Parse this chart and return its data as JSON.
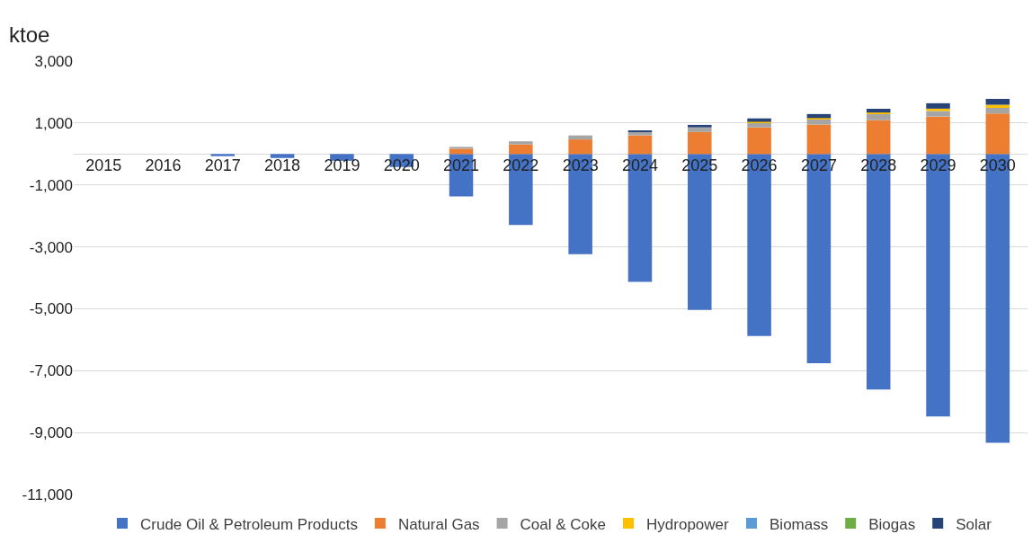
{
  "chart_data": {
    "type": "bar",
    "stacked": true,
    "ylabel": "ktoe",
    "categories": [
      "2015",
      "2016",
      "2017",
      "2018",
      "2019",
      "2020",
      "2021",
      "2022",
      "2023",
      "2024",
      "2025",
      "2026",
      "2027",
      "2028",
      "2029",
      "2030"
    ],
    "series": [
      {
        "name": "Crude Oil & Petroleum Products",
        "color": "#4472c4",
        "values": [
          0,
          0,
          -70,
          -130,
          -220,
          -420,
          -1370,
          -2290,
          -3240,
          -4130,
          -5040,
          -5880,
          -6760,
          -7610,
          -8480,
          -9330
        ]
      },
      {
        "name": "Natural Gas",
        "color": "#ed7d31",
        "values": [
          0,
          0,
          0,
          0,
          0,
          0,
          170,
          310,
          470,
          600,
          710,
          860,
          950,
          1090,
          1210,
          1310
        ]
      },
      {
        "name": "Coal & Coke",
        "color": "#a5a5a5",
        "values": [
          0,
          0,
          0,
          0,
          0,
          0,
          60,
          100,
          130,
          110,
          150,
          160,
          180,
          200,
          180,
          180
        ]
      },
      {
        "name": "Hydropower",
        "color": "#ffc000",
        "values": [
          0,
          0,
          0,
          0,
          0,
          0,
          0,
          0,
          0,
          0,
          0,
          20,
          30,
          50,
          75,
          100
        ]
      },
      {
        "name": "Biomass",
        "color": "#5b9bd5",
        "values": [
          0,
          0,
          0,
          0,
          0,
          0,
          0,
          0,
          0,
          0,
          0,
          0,
          0,
          0,
          0,
          0
        ]
      },
      {
        "name": "Biogas",
        "color": "#70ad47",
        "values": [
          0,
          0,
          0,
          0,
          0,
          0,
          0,
          0,
          0,
          0,
          0,
          0,
          0,
          0,
          0,
          0
        ]
      },
      {
        "name": "Solar",
        "color": "#264478",
        "values": [
          0,
          0,
          0,
          0,
          0,
          0,
          0,
          0,
          0,
          40,
          80,
          110,
          130,
          120,
          175,
          190
        ]
      }
    ],
    "ylim": [
      -11000,
      3000
    ],
    "yticks": [
      {
        "value": 3000,
        "label": "3,000"
      },
      {
        "value": 1000,
        "label": "1,000"
      },
      {
        "value": -1000,
        "label": "-1,000"
      },
      {
        "value": -3000,
        "label": "-3,000"
      },
      {
        "value": -5000,
        "label": "-5,000"
      },
      {
        "value": -7000,
        "label": "-7,000"
      },
      {
        "value": -9000,
        "label": "-9,000"
      },
      {
        "value": -11000,
        "label": "-11,000"
      }
    ],
    "grid": "y",
    "legend": "bottom"
  }
}
